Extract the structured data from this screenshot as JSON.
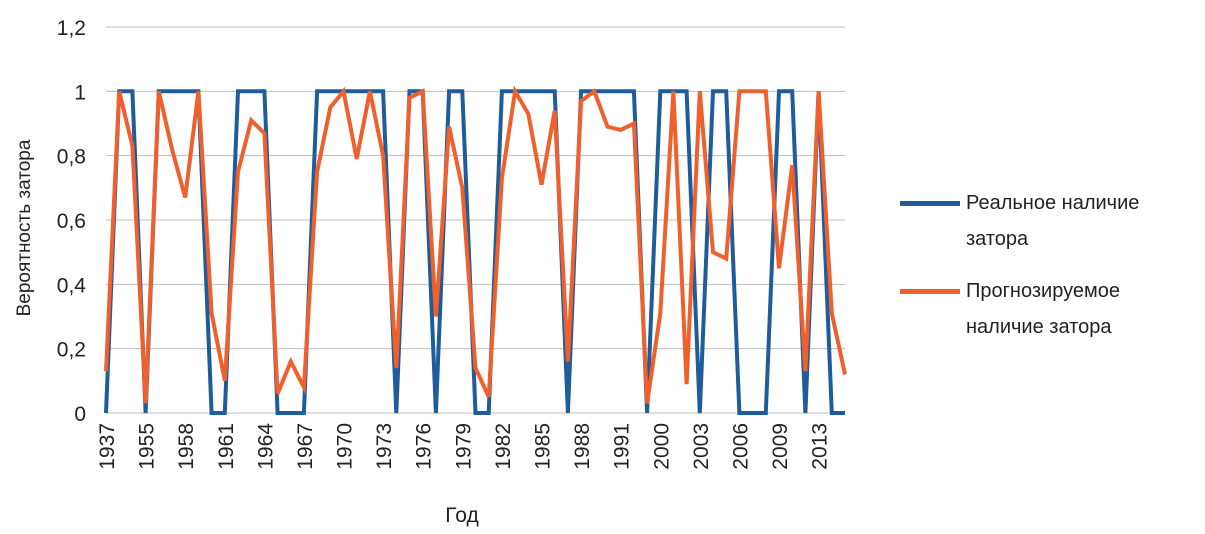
{
  "chart_data": {
    "type": "line",
    "x_label": "Год",
    "y_label": "Вероятность затора",
    "categories": [
      "1937",
      null,
      null,
      "1955",
      null,
      null,
      "1958",
      null,
      null,
      "1961",
      null,
      null,
      "1964",
      null,
      null,
      "1967",
      null,
      null,
      "1970",
      null,
      null,
      "1973",
      null,
      null,
      "1976",
      null,
      null,
      "1979",
      null,
      null,
      "1982",
      null,
      null,
      "1985",
      null,
      null,
      "1988",
      null,
      null,
      "1991",
      null,
      null,
      "2000",
      null,
      null,
      "2003",
      null,
      null,
      "2006",
      null,
      null,
      "2009",
      null,
      null,
      "2013",
      null,
      null
    ],
    "series": [
      {
        "name": "Реальное наличие затора",
        "color": "#1f5c9c",
        "values": [
          0,
          1,
          1,
          0,
          1,
          1,
          1,
          1,
          0,
          0,
          1,
          1,
          1,
          0,
          0,
          0,
          1,
          1,
          1,
          1,
          1,
          1,
          0,
          1,
          1,
          0,
          1,
          1,
          0,
          0,
          1,
          1,
          1,
          1,
          1,
          0,
          1,
          1,
          1,
          1,
          1,
          0,
          1,
          1,
          1,
          0,
          1,
          1,
          0,
          0,
          0,
          1,
          1,
          0,
          1,
          0,
          0
        ]
      },
      {
        "name": "Прогнозируемое наличие затора",
        "color": "#f0602c",
        "values": [
          0.13,
          1.0,
          0.83,
          0.03,
          1.0,
          0.82,
          0.67,
          1.0,
          0.31,
          0.1,
          0.75,
          0.91,
          0.87,
          0.06,
          0.16,
          0.08,
          0.75,
          0.95,
          1.0,
          0.79,
          1.0,
          0.8,
          0.14,
          0.98,
          1.0,
          0.3,
          0.89,
          0.7,
          0.14,
          0.05,
          0.73,
          1.0,
          0.93,
          0.71,
          0.94,
          0.16,
          0.97,
          1.0,
          0.89,
          0.88,
          0.9,
          0.03,
          0.31,
          1.0,
          0.09,
          1.0,
          0.5,
          0.48,
          1.0,
          1.0,
          1.0,
          0.45,
          0.77,
          0.13,
          1.0,
          0.31,
          0.12
        ]
      }
    ],
    "ylim": [
      0,
      1.2
    ],
    "yticks": [
      0,
      {
        "value": 0.2,
        "label": "0,2"
      },
      {
        "value": 0.4,
        "label": "0,4"
      },
      {
        "value": 0.6,
        "label": "0,6"
      },
      {
        "value": 0.8,
        "label": "0,8"
      },
      1,
      {
        "value": 1.2,
        "label": "1,2"
      }
    ],
    "grid": true,
    "legend": "right"
  }
}
